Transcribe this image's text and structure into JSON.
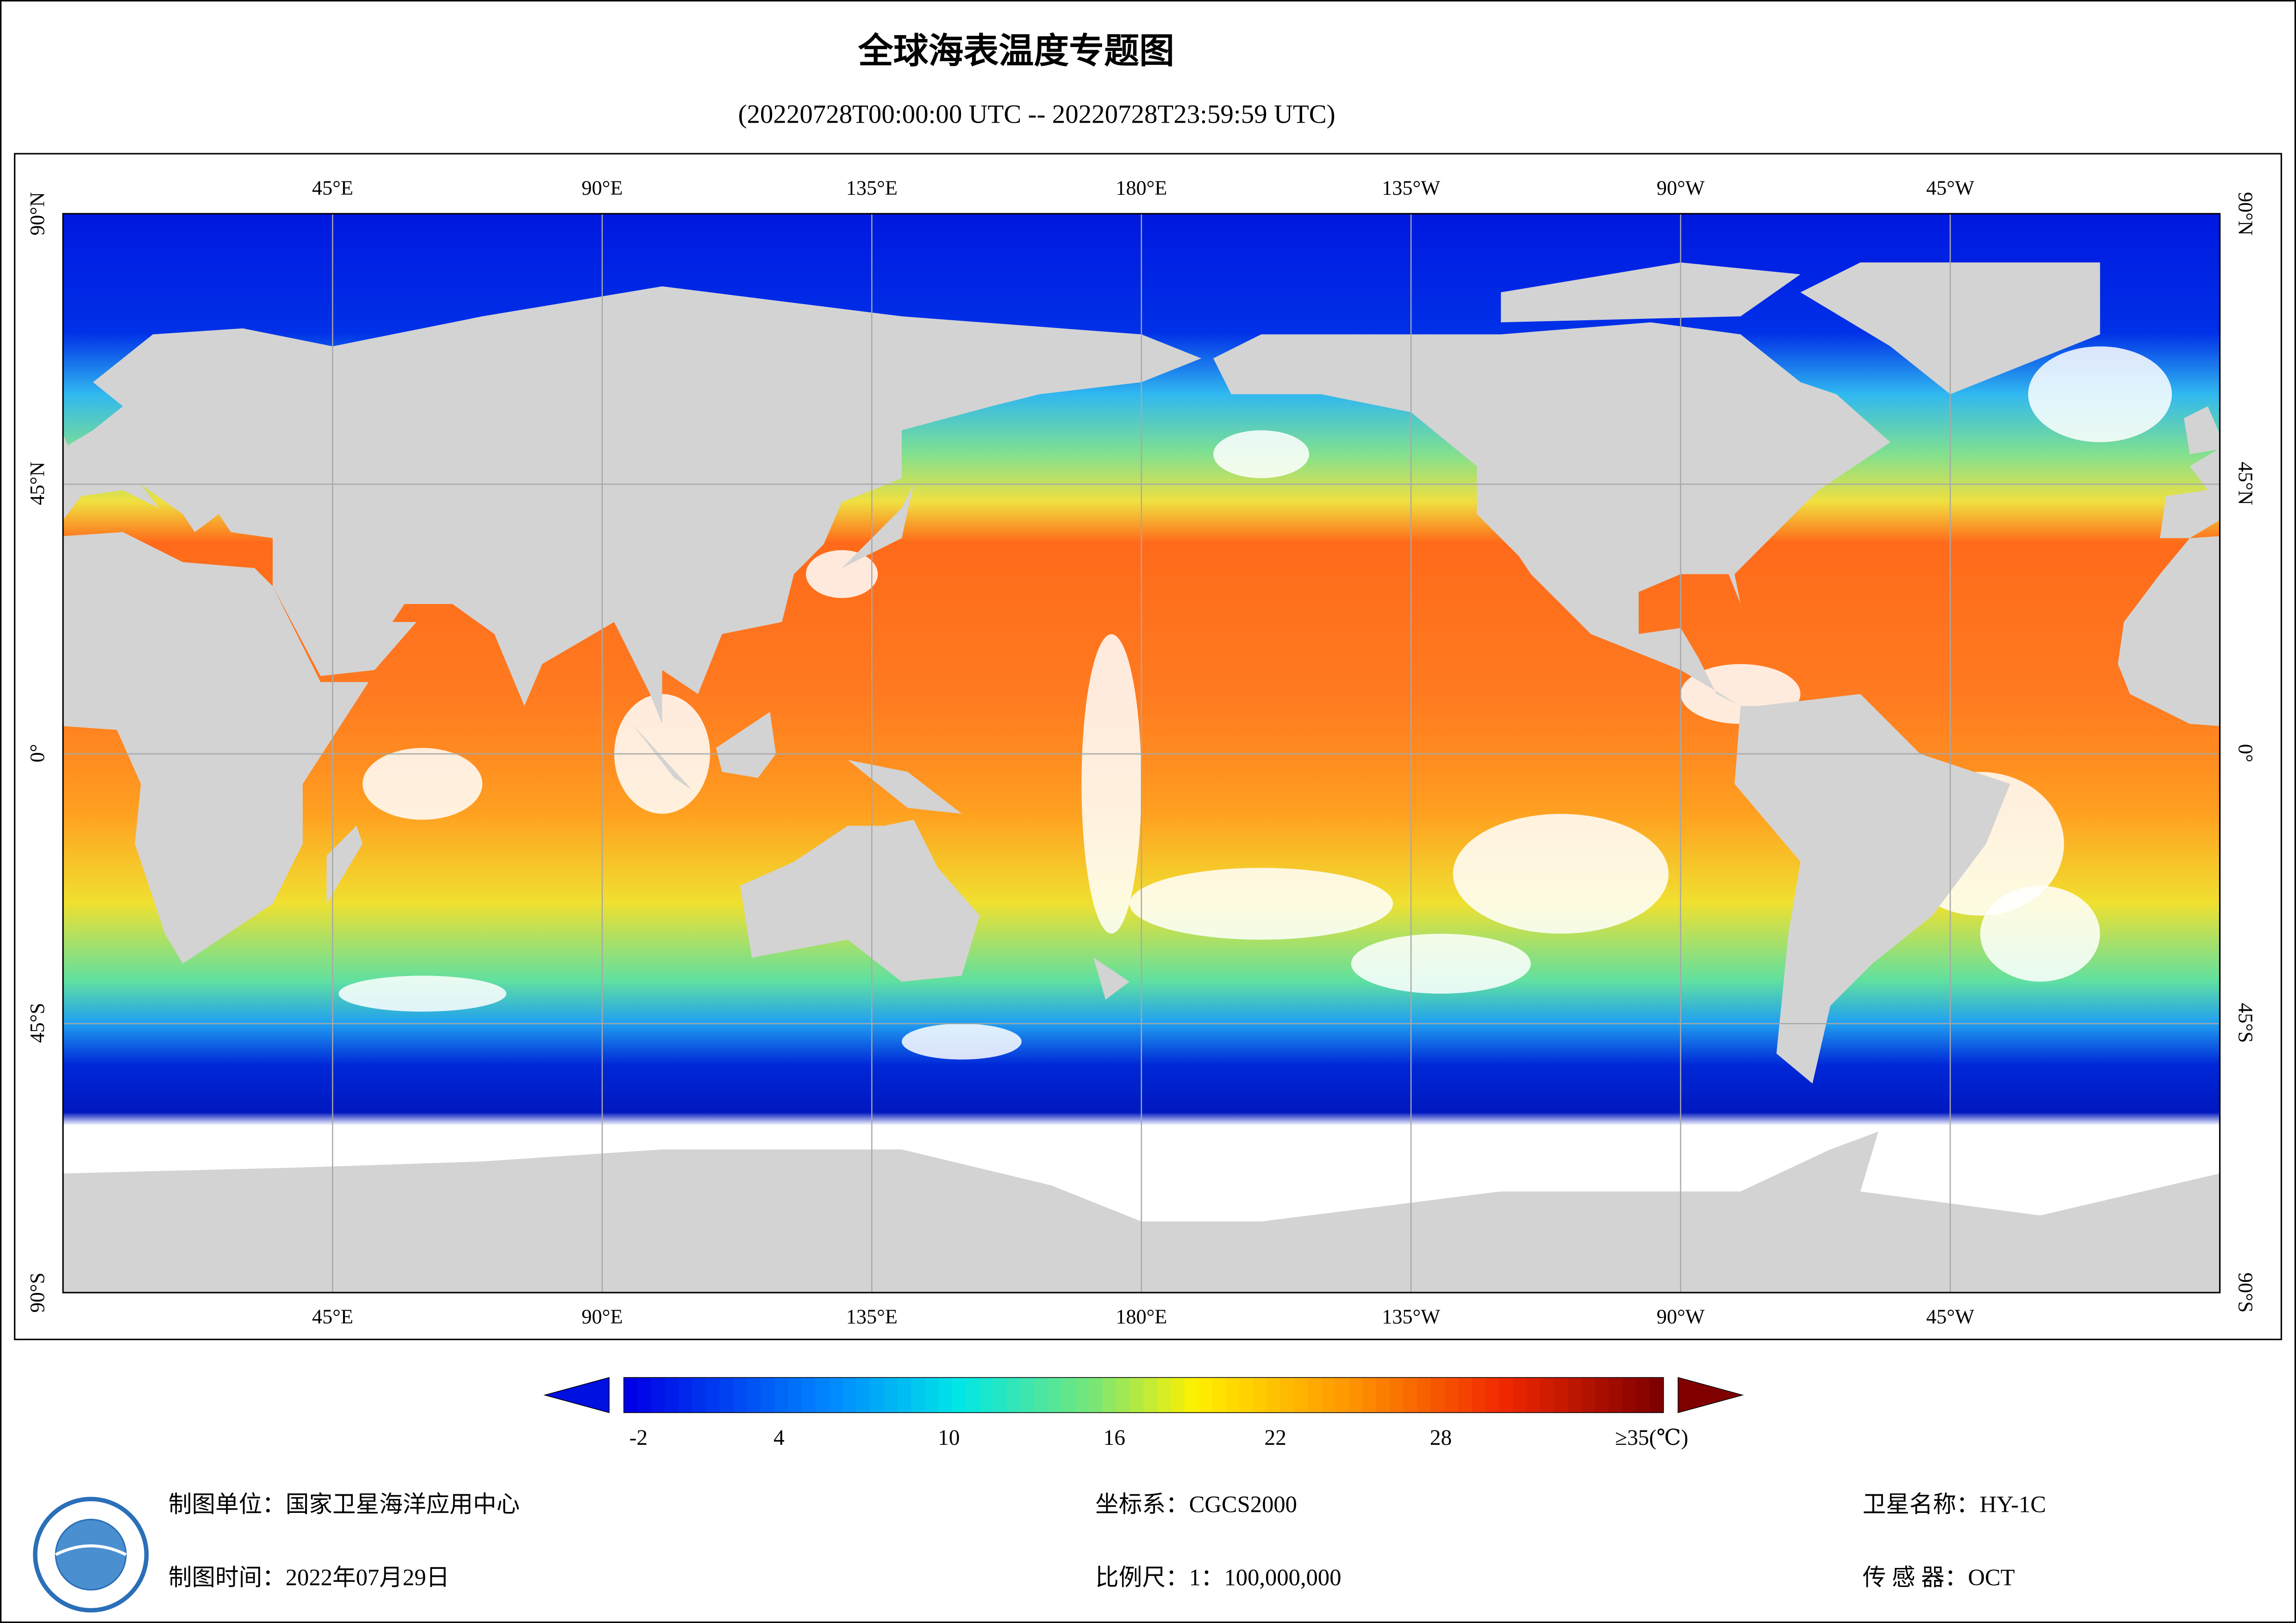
{
  "header": {
    "title": "全球海表温度专题图",
    "subtitle": "(20220728T00:00:00 UTC -- 20220728T23:59:59 UTC)"
  },
  "map": {
    "lon_labels": [
      "45°E",
      "90°E",
      "135°E",
      "180°E",
      "135°W",
      "90°W",
      "45°W"
    ],
    "lat_labels": [
      "90°N",
      "45°N",
      "0°",
      "45°S",
      "90°S"
    ]
  },
  "colorbar": {
    "labels": [
      "-2",
      "4",
      "10",
      "16",
      "22",
      "28",
      "≥35(℃)"
    ]
  },
  "footer": {
    "rows": [
      [
        "制图单位：国家卫星海洋应用中心",
        "坐标系：CGCS2000",
        "卫星名称：HY-1C"
      ],
      [
        "制图时间：2022年07月29日",
        "比例尺：1：100,000,000",
        "传 感 器：OCT"
      ]
    ]
  }
}
